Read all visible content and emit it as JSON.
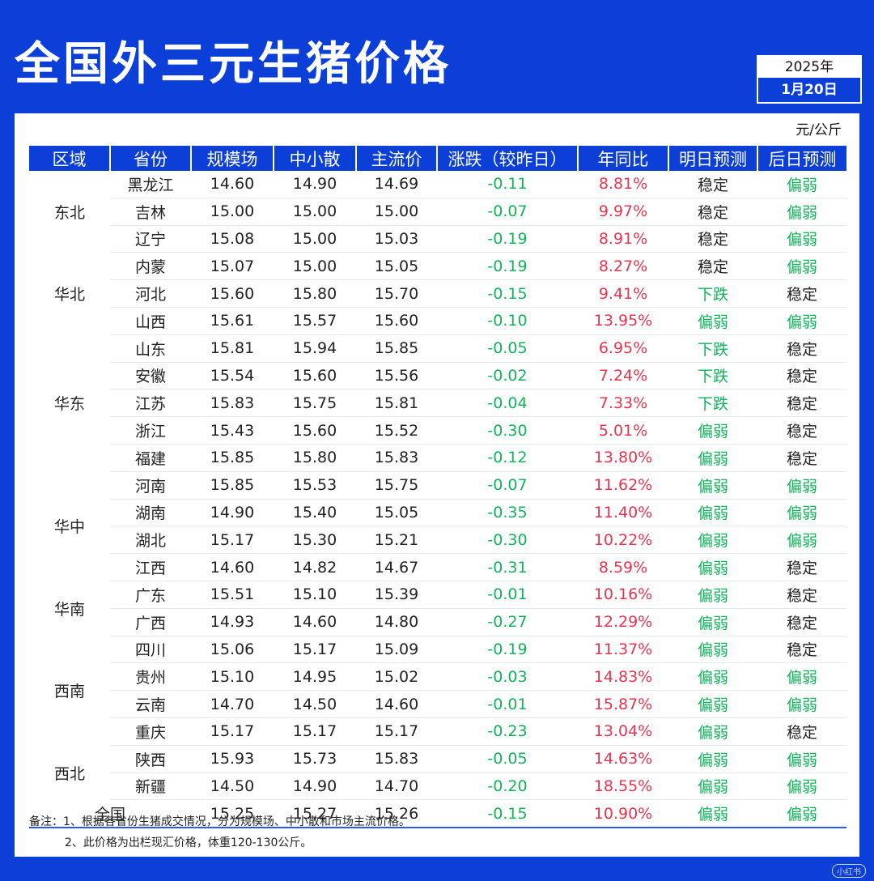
{
  "title": "全国外三元生猪价格",
  "date": {
    "year": "2025年",
    "day": "1月20日"
  },
  "unit": "元/公斤",
  "headers": [
    "区域",
    "省份",
    "规模场",
    "中小散",
    "主流价",
    "涨跌（较昨日）",
    "年同比",
    "明日预测",
    "后日预测"
  ],
  "regions": [
    {
      "name": "东北",
      "rows": 3
    },
    {
      "name": "华北",
      "rows": 3
    },
    {
      "name": "华东",
      "rows": 5
    },
    {
      "name": "华中",
      "rows": 4
    },
    {
      "name": "华南",
      "rows": 2
    },
    {
      "name": "西南",
      "rows": 4
    },
    {
      "name": "西北",
      "rows": 2
    }
  ],
  "rows": [
    {
      "province": "黑龙江",
      "large": "14.60",
      "small": "14.90",
      "main": "14.69",
      "change": "-0.11",
      "yoy": "8.81%",
      "tomorrow": "稳定",
      "after": "偏弱"
    },
    {
      "province": "吉林",
      "large": "15.00",
      "small": "15.00",
      "main": "15.00",
      "change": "-0.07",
      "yoy": "9.97%",
      "tomorrow": "稳定",
      "after": "偏弱"
    },
    {
      "province": "辽宁",
      "large": "15.08",
      "small": "15.00",
      "main": "15.03",
      "change": "-0.19",
      "yoy": "8.91%",
      "tomorrow": "稳定",
      "after": "偏弱"
    },
    {
      "province": "内蒙",
      "large": "15.07",
      "small": "15.00",
      "main": "15.05",
      "change": "-0.19",
      "yoy": "8.27%",
      "tomorrow": "稳定",
      "after": "偏弱"
    },
    {
      "province": "河北",
      "large": "15.60",
      "small": "15.80",
      "main": "15.70",
      "change": "-0.15",
      "yoy": "9.41%",
      "tomorrow": "下跌",
      "after": "稳定"
    },
    {
      "province": "山西",
      "large": "15.61",
      "small": "15.57",
      "main": "15.60",
      "change": "-0.10",
      "yoy": "13.95%",
      "tomorrow": "偏弱",
      "after": "偏弱"
    },
    {
      "province": "山东",
      "large": "15.81",
      "small": "15.94",
      "main": "15.85",
      "change": "-0.05",
      "yoy": "6.95%",
      "tomorrow": "下跌",
      "after": "稳定"
    },
    {
      "province": "安徽",
      "large": "15.54",
      "small": "15.60",
      "main": "15.56",
      "change": "-0.02",
      "yoy": "7.24%",
      "tomorrow": "下跌",
      "after": "稳定"
    },
    {
      "province": "江苏",
      "large": "15.83",
      "small": "15.75",
      "main": "15.81",
      "change": "-0.04",
      "yoy": "7.33%",
      "tomorrow": "下跌",
      "after": "稳定"
    },
    {
      "province": "浙江",
      "large": "15.43",
      "small": "15.60",
      "main": "15.52",
      "change": "-0.30",
      "yoy": "5.01%",
      "tomorrow": "偏弱",
      "after": "稳定"
    },
    {
      "province": "福建",
      "large": "15.85",
      "small": "15.80",
      "main": "15.83",
      "change": "-0.12",
      "yoy": "13.80%",
      "tomorrow": "偏弱",
      "after": "稳定"
    },
    {
      "province": "河南",
      "large": "15.85",
      "small": "15.53",
      "main": "15.75",
      "change": "-0.07",
      "yoy": "11.62%",
      "tomorrow": "偏弱",
      "after": "偏弱"
    },
    {
      "province": "湖南",
      "large": "14.90",
      "small": "15.40",
      "main": "15.05",
      "change": "-0.35",
      "yoy": "11.40%",
      "tomorrow": "偏弱",
      "after": "偏弱"
    },
    {
      "province": "湖北",
      "large": "15.17",
      "small": "15.30",
      "main": "15.21",
      "change": "-0.30",
      "yoy": "10.22%",
      "tomorrow": "偏弱",
      "after": "偏弱"
    },
    {
      "province": "江西",
      "large": "14.60",
      "small": "14.82",
      "main": "14.67",
      "change": "-0.31",
      "yoy": "8.59%",
      "tomorrow": "偏弱",
      "after": "稳定"
    },
    {
      "province": "广东",
      "large": "15.51",
      "small": "15.10",
      "main": "15.39",
      "change": "-0.01",
      "yoy": "10.16%",
      "tomorrow": "偏弱",
      "after": "稳定"
    },
    {
      "province": "广西",
      "large": "14.93",
      "small": "14.60",
      "main": "14.80",
      "change": "-0.27",
      "yoy": "12.29%",
      "tomorrow": "偏弱",
      "after": "稳定"
    },
    {
      "province": "四川",
      "large": "15.06",
      "small": "15.17",
      "main": "15.09",
      "change": "-0.19",
      "yoy": "11.37%",
      "tomorrow": "偏弱",
      "after": "稳定"
    },
    {
      "province": "贵州",
      "large": "15.10",
      "small": "14.95",
      "main": "15.02",
      "change": "-0.03",
      "yoy": "14.83%",
      "tomorrow": "偏弱",
      "after": "偏弱"
    },
    {
      "province": "云南",
      "large": "14.70",
      "small": "14.50",
      "main": "14.60",
      "change": "-0.01",
      "yoy": "15.87%",
      "tomorrow": "偏弱",
      "after": "偏弱"
    },
    {
      "province": "重庆",
      "large": "15.17",
      "small": "15.17",
      "main": "15.17",
      "change": "-0.23",
      "yoy": "13.04%",
      "tomorrow": "偏弱",
      "after": "稳定"
    },
    {
      "province": "陕西",
      "large": "15.93",
      "small": "15.73",
      "main": "15.83",
      "change": "-0.05",
      "yoy": "14.63%",
      "tomorrow": "偏弱",
      "after": "偏弱"
    },
    {
      "province": "新疆",
      "large": "14.50",
      "small": "14.90",
      "main": "14.70",
      "change": "-0.20",
      "yoy": "18.55%",
      "tomorrow": "偏弱",
      "after": "偏弱"
    }
  ],
  "national": {
    "label": "全国",
    "large": "15.25",
    "small": "15.27",
    "main": "15.26",
    "change": "-0.15",
    "yoy": "10.90%",
    "tomorrow": "偏弱",
    "after": "偏弱"
  },
  "notes": [
    "备注：1、根据各省份生猪成交情况，分为规模场、中小散和市场主流价格。",
    "2、此价格为出栏现汇价格，体重120-130公斤。"
  ],
  "watermark": "小红书",
  "colors": {
    "brand_blue": "#0b3fd8",
    "down_green": "#10b45a",
    "yoy_red": "#e8344e"
  }
}
